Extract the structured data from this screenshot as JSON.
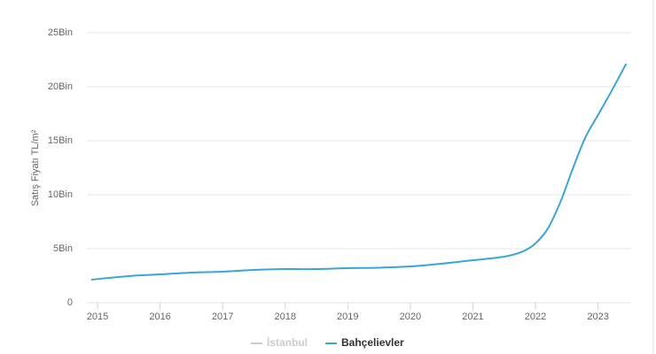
{
  "chart_data": {
    "type": "line",
    "y_label": "Satış Fiyatı TL/m²",
    "x": [
      2014.9,
      2015.5,
      2016,
      2016.5,
      2017,
      2017.5,
      2018,
      2018.5,
      2019,
      2019.5,
      2020,
      2020.5,
      2021,
      2021.5,
      2021.8,
      2022,
      2022.2,
      2022.4,
      2022.6,
      2022.8,
      2023,
      2023.2,
      2023.45
    ],
    "series": [
      {
        "name": "Bahçelievler",
        "color": "#3aa6d8",
        "values": [
          2130,
          2460,
          2620,
          2790,
          2870,
          3030,
          3110,
          3110,
          3200,
          3240,
          3360,
          3610,
          3930,
          4260,
          4750,
          5490,
          6890,
          9340,
          12460,
          15330,
          17380,
          19430,
          22130
        ]
      }
    ],
    "hidden_series": [
      {
        "name": "İstanbul",
        "color": "#cccccc"
      }
    ],
    "xlim": [
      2014.83,
      2023.53
    ],
    "xticks": [
      2015,
      2016,
      2017,
      2018,
      2019,
      2020,
      2021,
      2022,
      2023
    ],
    "ylim": [
      0,
      25000
    ],
    "yticks": [
      0,
      {
        "value": 5000,
        "label": "5Bin"
      },
      {
        "value": 10000,
        "label": "10Bin"
      },
      {
        "value": 15000,
        "label": "15Bin"
      },
      {
        "value": 20000,
        "label": "20Bin"
      },
      {
        "value": 25000,
        "label": "25Bin"
      }
    ],
    "grid": true,
    "legend": "bottom"
  }
}
